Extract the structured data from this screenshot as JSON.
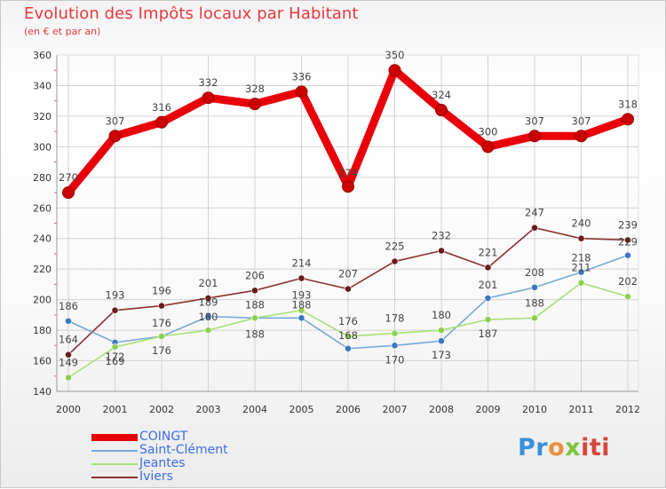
{
  "header": {
    "title": "Evolution des Impôts locaux par Habitant",
    "subtitle": "(en € et par an)"
  },
  "logo": {
    "parts": [
      "Pr",
      "o",
      "x",
      "iti"
    ]
  },
  "colors": {
    "title": "#e8383d",
    "legend_text": "#3a6ee8",
    "grid": "#d2d2d2"
  },
  "chart_data": {
    "type": "line",
    "title": "Evolution des Impôts locaux par Habitant",
    "subtitle": "(en € et par an)",
    "xlabel": "",
    "ylabel": "",
    "x": [
      "2000",
      "2001",
      "2002",
      "2003",
      "2004",
      "2005",
      "2006",
      "2007",
      "2008",
      "2009",
      "2010",
      "2011",
      "2012"
    ],
    "ylim": [
      140,
      360
    ],
    "yticks": [
      "140",
      "160",
      "180",
      "200",
      "220",
      "240",
      "260",
      "280",
      "300",
      "320",
      "340",
      "360"
    ],
    "grid": true,
    "legend_position": "bottom-left",
    "series": [
      {
        "name": "COINGT",
        "color": "#e8000b",
        "dot_color": "#cc0000",
        "values": [
          270,
          307,
          316,
          332,
          328,
          336,
          274,
          350,
          324,
          300,
          307,
          307,
          318
        ],
        "labels": [
          "270",
          "307",
          "316",
          "332",
          "328",
          "336",
          "274",
          "350",
          "324",
          "300",
          "307",
          "307",
          "318"
        ]
      },
      {
        "name": "Saint-Clément",
        "color": "#78a8d8",
        "dot_color": "#3a78c0",
        "values": [
          186,
          172,
          176,
          189,
          188,
          188,
          168,
          170,
          173,
          201,
          208,
          218,
          229
        ],
        "labels": [
          "186",
          "172",
          "176",
          "189",
          "188",
          "188",
          "168",
          "170",
          "173",
          "201",
          "208",
          "218",
          "229"
        ]
      },
      {
        "name": "Jeantes",
        "color": "#a8e078",
        "dot_color": "#8cd050",
        "values": [
          149,
          169,
          176,
          180,
          188,
          193,
          176,
          178,
          180,
          187,
          188,
          211,
          202
        ],
        "labels": [
          "149",
          "169",
          "176",
          "180",
          "188",
          "193",
          "176",
          "178",
          "180",
          "187",
          "188",
          "211",
          "202"
        ]
      },
      {
        "name": "Iviers",
        "color": "#8c3030",
        "dot_color": "#6a1a1a",
        "values": [
          164,
          193,
          196,
          201,
          206,
          214,
          207,
          225,
          232,
          221,
          247,
          240,
          239
        ],
        "labels": [
          "164",
          "193",
          "196",
          "201",
          "206",
          "214",
          "207",
          "225",
          "232",
          "221",
          "247",
          "240",
          "239"
        ]
      }
    ]
  }
}
